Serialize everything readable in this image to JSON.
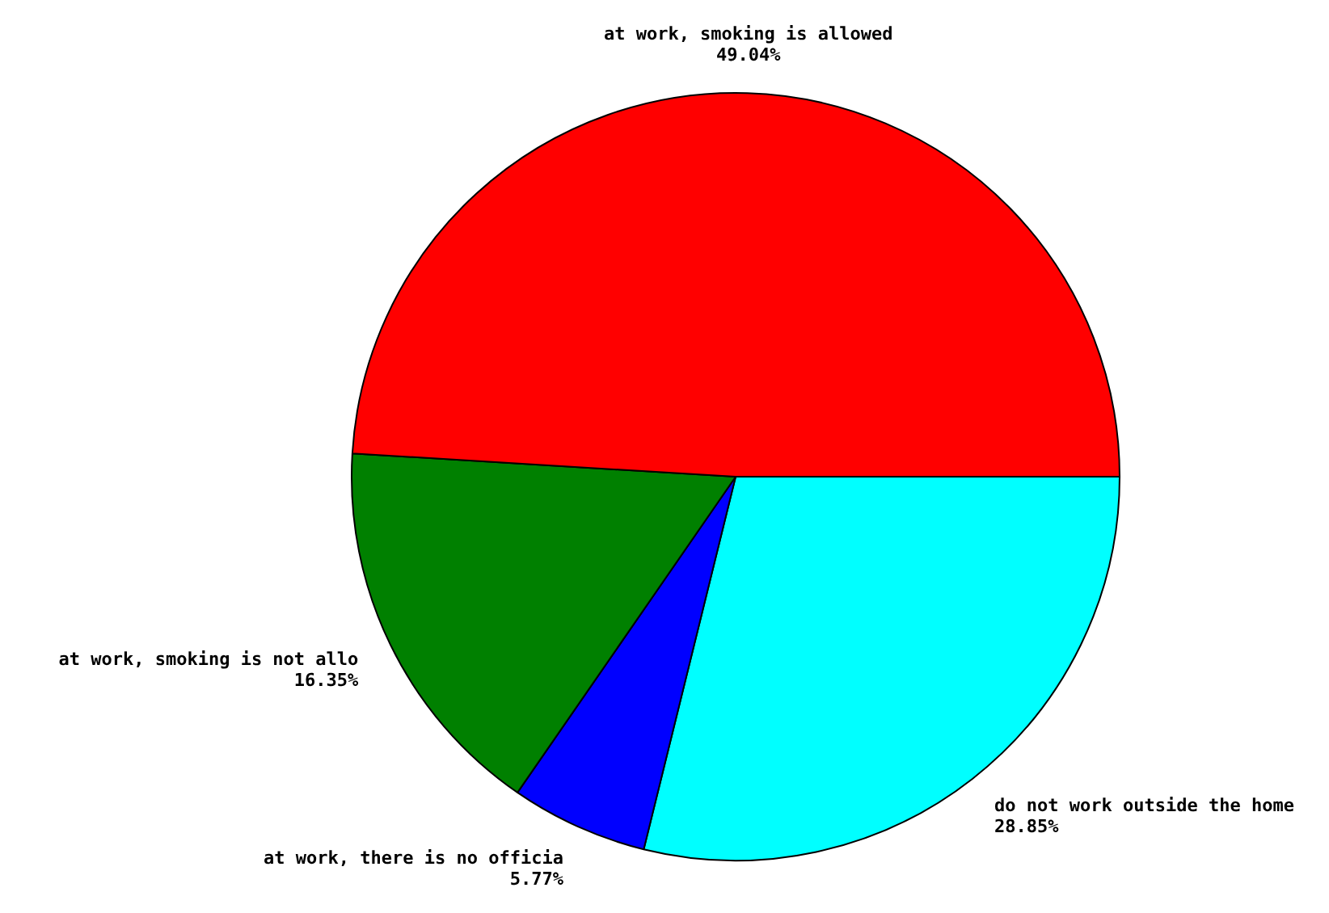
{
  "chart_data": {
    "type": "pie",
    "categories": [
      "do not work outside the home",
      "at work, there is no officia",
      "at work, smoking is not allo",
      "at work, smoking is allowed"
    ],
    "values": [
      28.85,
      5.77,
      16.35,
      49.04
    ],
    "colors": [
      "#00ffff",
      "#0000ff",
      "#008000",
      "#ff0000"
    ],
    "value_labels": [
      "28.85%",
      "5.77%",
      "16.35%",
      "49.04%"
    ],
    "legend": false
  }
}
